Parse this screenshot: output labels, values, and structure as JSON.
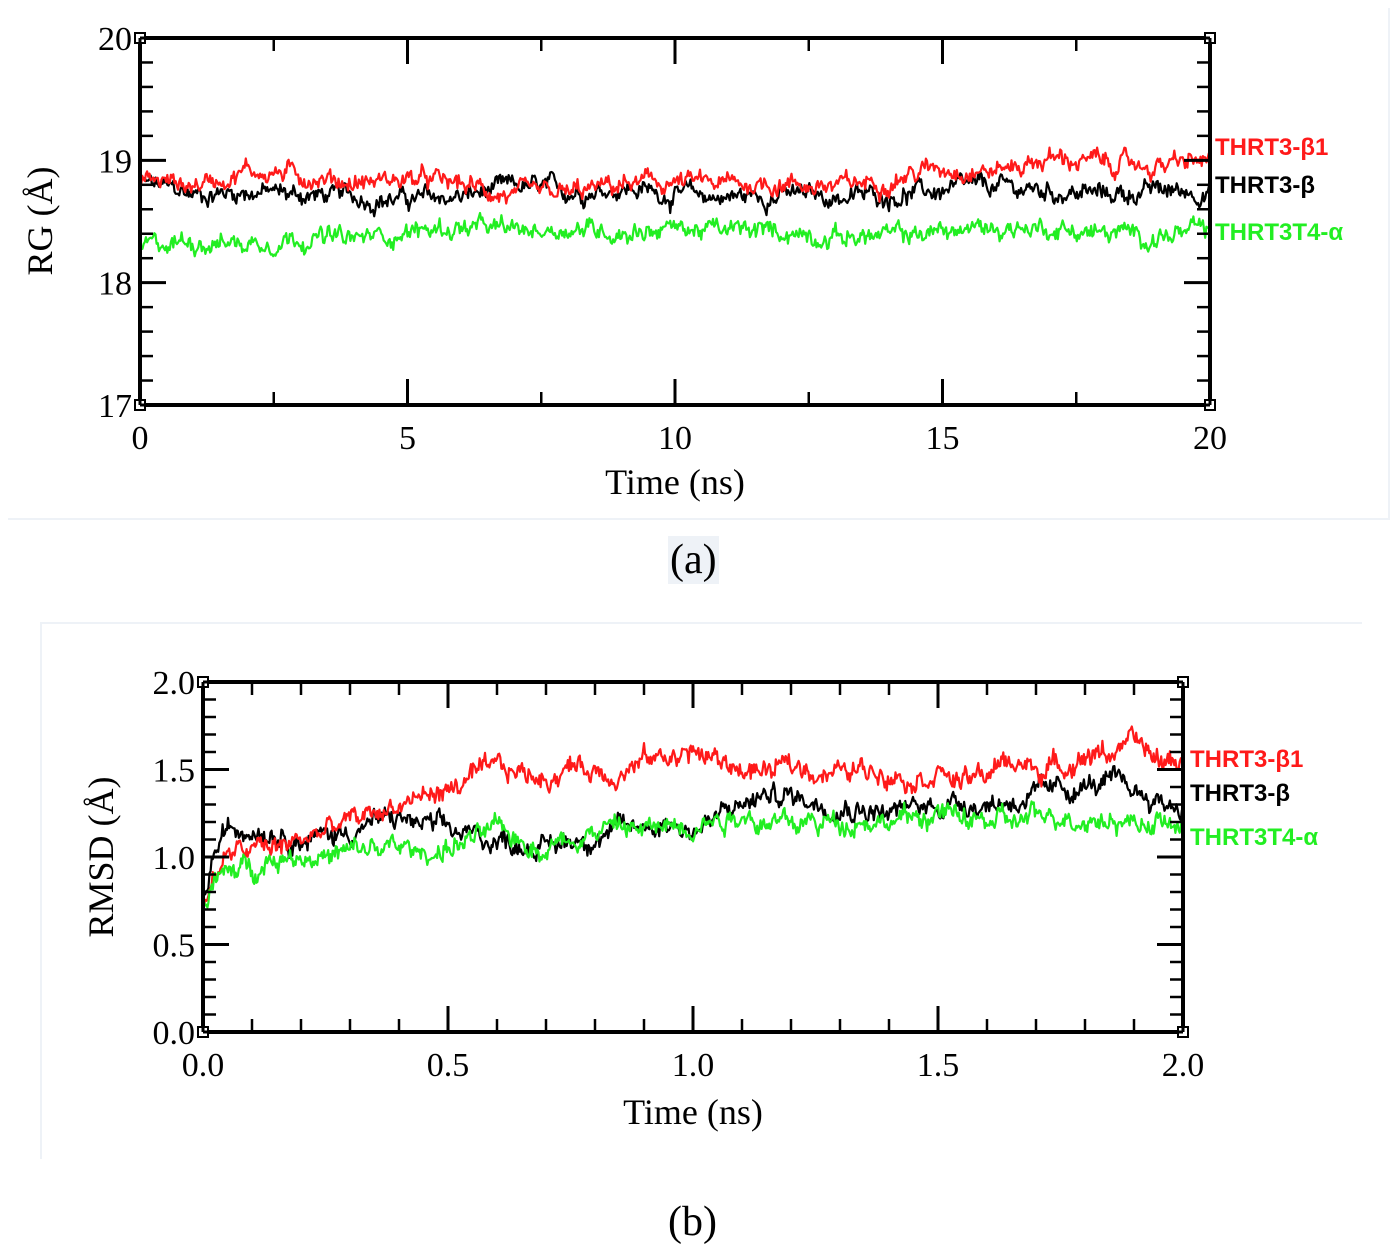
{
  "captions": {
    "a": "(a)",
    "b": "(b)"
  },
  "chart_data": [
    {
      "type": "line",
      "panel": "a",
      "xlabel": "Time (ns)",
      "ylabel": "RG (Å)",
      "xlim": [
        0,
        20
      ],
      "ylim": [
        17,
        20
      ],
      "xticks": [
        0,
        5,
        10,
        15,
        20
      ],
      "xtick_labels": [
        "0",
        "5",
        "10",
        "15",
        "20"
      ],
      "yticks": [
        17,
        18,
        19,
        20
      ],
      "ytick_labels": [
        "17",
        "18",
        "19",
        "20"
      ],
      "legend_position": "right",
      "series": [
        {
          "name": "THRT3-β1",
          "color": "#ff1a1a",
          "x": [
            0,
            1,
            2,
            3,
            4,
            5,
            6,
            7,
            8,
            9,
            10,
            11,
            12,
            13,
            14,
            15,
            16,
            17,
            18,
            19,
            20
          ],
          "values": [
            18.85,
            18.8,
            18.92,
            18.88,
            18.82,
            18.85,
            18.8,
            18.7,
            18.72,
            18.8,
            18.82,
            18.8,
            18.82,
            18.78,
            18.85,
            18.95,
            18.92,
            19.02,
            18.98,
            18.95,
            19.0
          ]
        },
        {
          "name": "THRT3-β",
          "color": "#000000",
          "x": [
            0,
            1,
            2,
            3,
            4,
            5,
            6,
            7,
            8,
            9,
            10,
            11,
            12,
            13,
            14,
            15,
            16,
            17,
            18,
            19,
            20
          ],
          "values": [
            18.82,
            18.72,
            18.75,
            18.72,
            18.7,
            18.68,
            18.7,
            18.78,
            18.75,
            18.78,
            18.72,
            18.7,
            18.72,
            18.7,
            18.72,
            18.75,
            18.78,
            18.75,
            18.72,
            18.75,
            18.75
          ]
        },
        {
          "name": "THRT3T4-α",
          "color": "#22ee22",
          "x": [
            0,
            1,
            2,
            3,
            4,
            5,
            6,
            7,
            8,
            9,
            10,
            11,
            12,
            13,
            14,
            15,
            16,
            17,
            18,
            19,
            20
          ],
          "values": [
            18.28,
            18.35,
            18.32,
            18.38,
            18.35,
            18.42,
            18.45,
            18.42,
            18.45,
            18.42,
            18.45,
            18.42,
            18.42,
            18.38,
            18.38,
            18.42,
            18.45,
            18.45,
            18.4,
            18.38,
            18.42
          ]
        }
      ]
    },
    {
      "type": "line",
      "panel": "b",
      "xlabel": "Time (ns)",
      "ylabel": "RMSD (Å)",
      "xlim": [
        0,
        2
      ],
      "ylim": [
        0,
        2
      ],
      "xticks": [
        0,
        0.5,
        1,
        1.5,
        2
      ],
      "xtick_labels": [
        "0.0",
        "0.5",
        "1.0",
        "1.5",
        "2.0"
      ],
      "yticks": [
        0,
        0.5,
        1,
        1.5,
        2
      ],
      "ytick_labels": [
        "0.0",
        "0.5",
        "1.0",
        "1.5",
        "2.0"
      ],
      "legend_position": "right",
      "series": [
        {
          "name": "THRT3-β1",
          "color": "#ff1a1a",
          "x": [
            0,
            0.02,
            0.05,
            0.1,
            0.15,
            0.2,
            0.25,
            0.3,
            0.35,
            0.4,
            0.45,
            0.5,
            0.55,
            0.6,
            0.65,
            0.7,
            0.75,
            0.8,
            0.85,
            0.9,
            0.95,
            1.0,
            1.05,
            1.1,
            1.15,
            1.2,
            1.25,
            1.3,
            1.35,
            1.4,
            1.45,
            1.5,
            1.55,
            1.6,
            1.65,
            1.7,
            1.75,
            1.8,
            1.85,
            1.9,
            1.95,
            2.0
          ],
          "values": [
            0.65,
            0.9,
            1.0,
            1.05,
            1.05,
            1.1,
            1.15,
            1.2,
            1.25,
            1.3,
            1.35,
            1.38,
            1.45,
            1.5,
            1.48,
            1.45,
            1.52,
            1.5,
            1.48,
            1.55,
            1.58,
            1.6,
            1.55,
            1.5,
            1.48,
            1.52,
            1.5,
            1.48,
            1.5,
            1.5,
            1.45,
            1.5,
            1.42,
            1.48,
            1.55,
            1.5,
            1.52,
            1.58,
            1.6,
            1.65,
            1.55,
            1.55
          ]
        },
        {
          "name": "THRT3-β",
          "color": "#000000",
          "x": [
            0,
            0.02,
            0.05,
            0.1,
            0.15,
            0.2,
            0.25,
            0.3,
            0.35,
            0.4,
            0.45,
            0.5,
            0.55,
            0.6,
            0.65,
            0.7,
            0.75,
            0.8,
            0.85,
            0.9,
            0.95,
            1.0,
            1.05,
            1.1,
            1.15,
            1.2,
            1.25,
            1.3,
            1.35,
            1.4,
            1.45,
            1.5,
            1.55,
            1.6,
            1.65,
            1.7,
            1.75,
            1.8,
            1.85,
            1.9,
            1.95,
            2.0
          ],
          "values": [
            0.7,
            1.0,
            1.15,
            1.18,
            1.15,
            1.1,
            1.12,
            1.15,
            1.2,
            1.22,
            1.18,
            1.15,
            1.12,
            1.1,
            1.08,
            1.05,
            1.1,
            1.12,
            1.15,
            1.18,
            1.2,
            1.15,
            1.22,
            1.3,
            1.35,
            1.35,
            1.32,
            1.3,
            1.28,
            1.25,
            1.28,
            1.3,
            1.32,
            1.3,
            1.32,
            1.35,
            1.38,
            1.4,
            1.42,
            1.38,
            1.32,
            1.28
          ]
        },
        {
          "name": "THRT3T4-α",
          "color": "#22ee22",
          "x": [
            0,
            0.02,
            0.05,
            0.1,
            0.15,
            0.2,
            0.25,
            0.3,
            0.35,
            0.4,
            0.45,
            0.5,
            0.55,
            0.6,
            0.65,
            0.7,
            0.75,
            0.8,
            0.85,
            0.9,
            0.95,
            1.0,
            1.05,
            1.1,
            1.15,
            1.2,
            1.25,
            1.3,
            1.35,
            1.4,
            1.45,
            1.5,
            1.55,
            1.6,
            1.65,
            1.7,
            1.75,
            1.8,
            1.85,
            1.9,
            1.95,
            2.0
          ],
          "values": [
            0.7,
            0.85,
            0.9,
            0.95,
            1.0,
            1.02,
            1.0,
            1.02,
            1.05,
            1.05,
            1.02,
            1.05,
            1.1,
            1.15,
            1.1,
            1.05,
            1.12,
            1.15,
            1.18,
            1.15,
            1.18,
            1.2,
            1.22,
            1.25,
            1.2,
            1.18,
            1.2,
            1.2,
            1.22,
            1.2,
            1.22,
            1.25,
            1.22,
            1.2,
            1.2,
            1.22,
            1.25,
            1.22,
            1.22,
            1.2,
            1.2,
            1.15
          ]
        }
      ]
    }
  ]
}
